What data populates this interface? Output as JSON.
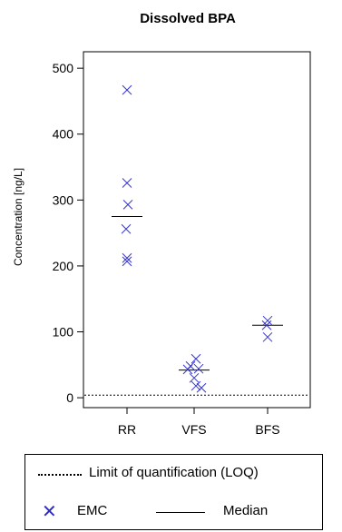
{
  "chart_data": {
    "type": "scatter",
    "title": "Dissolved BPA",
    "ylabel": "Concentration [ng/L]",
    "xlabel": "",
    "categories": [
      "RR",
      "VFS",
      "BFS"
    ],
    "ylim": [
      -15,
      525
    ],
    "yticks": [
      0,
      100,
      200,
      300,
      400,
      500
    ],
    "loq": 4,
    "emc_color": "#3434cc",
    "points": [
      {
        "category": "RR",
        "values": [
          467,
          326,
          293,
          256,
          212,
          207
        ]
      },
      {
        "category": "VFS",
        "values": [
          59,
          48,
          44,
          43,
          30,
          18,
          15
        ]
      },
      {
        "category": "BFS",
        "values": [
          117,
          110,
          92
        ]
      }
    ],
    "medians": [
      {
        "category": "RR",
        "value": 275
      },
      {
        "category": "VFS",
        "value": 42
      },
      {
        "category": "BFS",
        "value": 110
      }
    ],
    "legend": {
      "loq_label": "Limit of quantification (LOQ)",
      "emc_label": "EMC",
      "median_label": "Median"
    }
  }
}
